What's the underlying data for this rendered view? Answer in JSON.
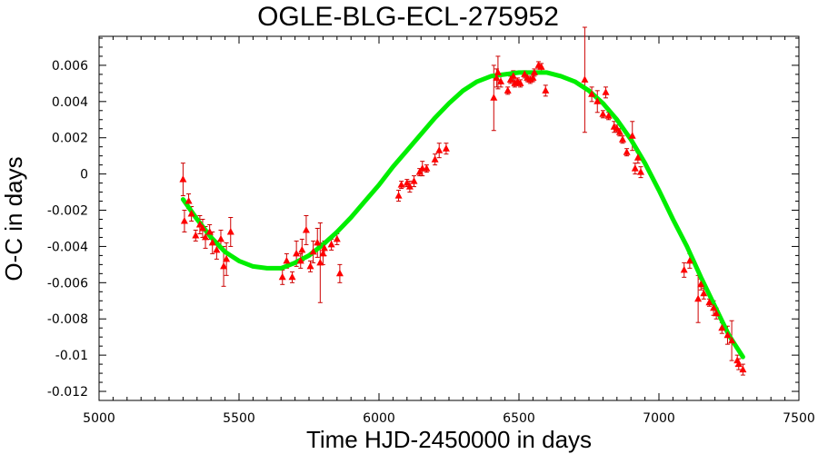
{
  "chart_data": {
    "type": "scatter",
    "title": "OGLE-BLG-ECL-275952",
    "xlabel": "Time HJD-2450000 in days",
    "ylabel": "O-C in days",
    "xlim": [
      5000,
      7500
    ],
    "ylim": [
      -0.0125,
      0.0076
    ],
    "x_ticks": [
      5000,
      5500,
      6000,
      6500,
      7000,
      7500
    ],
    "x_tick_labels": [
      "5000",
      "5500",
      "6000",
      "6500",
      "7000",
      "7500"
    ],
    "y_ticks": [
      -0.012,
      -0.01,
      -0.008,
      -0.006,
      -0.004,
      -0.002,
      0,
      0.002,
      0.004,
      0.006
    ],
    "y_tick_labels": [
      "-0.012",
      "-0.01",
      "-0.008",
      "-0.006",
      "-0.004",
      "-0.002",
      "0",
      "0.002",
      "0.004",
      "0.006"
    ],
    "grid": false,
    "colors": {
      "points": "#ff0000",
      "errorbars": "#cc0000",
      "fit": "#00ee00"
    },
    "series": [
      {
        "kind": "points_with_errorbars",
        "x": [
          5300,
          5305,
          5320,
          5330,
          5345,
          5360,
          5370,
          5380,
          5395,
          5405,
          5420,
          5435,
          5445,
          5455,
          5470,
          5655,
          5670,
          5690,
          5705,
          5720,
          5725,
          5740,
          5755,
          5765,
          5780,
          5790,
          5800,
          5805,
          5830,
          5850,
          5860,
          6070,
          6080,
          6100,
          6110,
          6125,
          6145,
          6155,
          6170,
          6200,
          6215,
          6240,
          6410,
          6420,
          6425,
          6435,
          6460,
          6470,
          6480,
          6485,
          6495,
          6505,
          6520,
          6530,
          6540,
          6550,
          6555,
          6570,
          6580,
          6595,
          6735,
          6760,
          6780,
          6800,
          6810,
          6820,
          6840,
          6850,
          6860,
          6870,
          6885,
          6905,
          6915,
          6925,
          6935,
          7090,
          7110,
          7140,
          7150,
          7160,
          7180,
          7195,
          7205,
          7225,
          7245,
          7260,
          7280,
          7285,
          7300
        ],
        "y": [
          -0.0003,
          -0.0026,
          -0.0015,
          -0.0022,
          -0.0034,
          -0.0028,
          -0.003,
          -0.0035,
          -0.0032,
          -0.0038,
          -0.0042,
          -0.0036,
          -0.0051,
          -0.0047,
          -0.0032,
          -0.0057,
          -0.0048,
          -0.0057,
          -0.0044,
          -0.0048,
          -0.0042,
          -0.0031,
          -0.0051,
          -0.0043,
          -0.0038,
          -0.0049,
          -0.0044,
          -0.0041,
          -0.0039,
          -0.0036,
          -0.0055,
          -0.0012,
          -0.0006,
          -0.0005,
          -0.0007,
          -0.0004,
          0.0001,
          0.0003,
          0.0003,
          0.0008,
          0.0013,
          0.0014,
          0.0042,
          0.0053,
          0.0056,
          0.0051,
          0.0046,
          0.0052,
          0.0054,
          0.005,
          0.0051,
          0.005,
          0.0055,
          0.0053,
          0.0052,
          0.0053,
          0.0056,
          0.006,
          0.0059,
          0.0046,
          0.0052,
          0.0044,
          0.004,
          0.0033,
          0.0045,
          0.0032,
          0.0026,
          0.0025,
          0.0023,
          0.0019,
          0.0012,
          0.0021,
          0.0003,
          0.0009,
          0.0001,
          -0.0053,
          -0.0048,
          -0.0069,
          -0.0061,
          -0.0066,
          -0.0071,
          -0.0074,
          -0.0077,
          -0.0085,
          -0.0089,
          -0.0092,
          -0.0103,
          -0.0105,
          -0.0108
        ],
        "err": [
          0.0009,
          0.0006,
          0.0004,
          0.0004,
          0.0003,
          0.0005,
          0.0005,
          0.0006,
          0.0004,
          0.0006,
          0.0005,
          0.0005,
          0.0011,
          0.0009,
          0.0008,
          0.0004,
          0.0004,
          0.0003,
          0.0007,
          0.0004,
          0.0006,
          0.0008,
          0.0003,
          0.0006,
          0.0008,
          0.0022,
          0.0006,
          0.0004,
          0.0003,
          0.0003,
          0.0005,
          0.0003,
          0.0002,
          0.0002,
          0.0003,
          0.0003,
          0.0002,
          0.0004,
          0.0002,
          0.0003,
          0.0004,
          0.0003,
          0.0018,
          0.0005,
          0.0009,
          0.0003,
          0.0002,
          0.0002,
          0.0003,
          0.0002,
          0.0002,
          0.0002,
          0.0002,
          0.0002,
          0.0002,
          0.0002,
          0.0002,
          0.0002,
          0.0002,
          0.0003,
          0.0029,
          0.0004,
          0.0006,
          0.0002,
          0.0003,
          0.0002,
          0.0003,
          0.0002,
          0.0002,
          0.0002,
          0.0002,
          0.0008,
          0.0003,
          0.0003,
          0.0003,
          0.0004,
          0.0004,
          0.0013,
          0.0003,
          0.0003,
          0.0002,
          0.0004,
          0.0003,
          0.0003,
          0.0005,
          0.0011,
          0.0003,
          0.0003,
          0.0003
        ]
      },
      {
        "kind": "fit_curve",
        "x": [
          5300,
          5350,
          5400,
          5450,
          5500,
          5550,
          5600,
          5650,
          5700,
          5750,
          5800,
          5850,
          5900,
          5950,
          6000,
          6050,
          6100,
          6150,
          6200,
          6250,
          6300,
          6350,
          6400,
          6450,
          6500,
          6550,
          6600,
          6650,
          6700,
          6750,
          6800,
          6850,
          6900,
          6950,
          7000,
          7050,
          7100,
          7150,
          7200,
          7250,
          7300
        ],
        "y": [
          -0.0014,
          -0.0025,
          -0.0035,
          -0.0043,
          -0.0048,
          -0.0051,
          -0.0052,
          -0.0052,
          -0.0049,
          -0.0045,
          -0.0039,
          -0.0032,
          -0.0024,
          -0.0015,
          -0.0006,
          0.0004,
          0.0013,
          0.0022,
          0.0031,
          0.0039,
          0.0046,
          0.0051,
          0.0054,
          0.0055,
          0.0056,
          0.0056,
          0.0056,
          0.0054,
          0.0051,
          0.0046,
          0.0039,
          0.003,
          0.0019,
          0.0006,
          -0.0009,
          -0.0025,
          -0.004,
          -0.0057,
          -0.0073,
          -0.0089,
          -0.0101
        ]
      }
    ]
  }
}
